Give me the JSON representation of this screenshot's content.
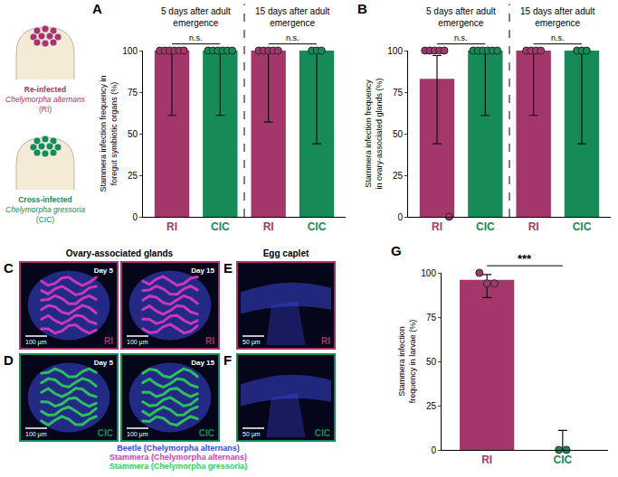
{
  "cartoon": [
    {
      "lines": [
        "Re-infected",
        "Chelymorpha alternans",
        "(RI)"
      ],
      "color": "#a3366b"
    },
    {
      "lines": [
        "Cross-infected",
        "Chelymorpha gressoria",
        "(CIC)"
      ],
      "color": "#168a57"
    }
  ],
  "chart_data": [
    {
      "letter": "A",
      "type": "bar",
      "y_title": "Stammera infection frequency in foregut symbiotic organs (%)",
      "categories": [
        "RI",
        "CIC",
        "RI",
        "CIC"
      ],
      "colors": [
        "#a3366b",
        "#168a57",
        "#a3366b",
        "#168a57"
      ],
      "values": [
        100,
        100,
        100,
        100
      ],
      "ci_lower": [
        61,
        61,
        57,
        44
      ],
      "ci_upper": [
        100,
        100,
        100,
        100
      ],
      "points": [
        [
          100,
          100,
          100,
          100,
          100,
          100
        ],
        [
          100,
          100,
          100,
          100,
          100,
          100
        ],
        [
          100,
          100,
          100,
          100,
          100
        ],
        [
          100,
          100,
          100
        ]
      ],
      "groups": [
        {
          "title": "5 days after adult emergence",
          "significance": "n.s."
        },
        {
          "title": "15 days after adult emergence",
          "significance": "n.s."
        }
      ],
      "ylim": [
        0,
        100
      ],
      "yticks": [
        0,
        25,
        50,
        75,
        100
      ],
      "grid": false
    },
    {
      "letter": "B",
      "type": "bar",
      "y_title": "Stammera infection frequency in ovary-associated glands (%)",
      "categories": [
        "RI",
        "CIC",
        "RI",
        "CIC"
      ],
      "colors": [
        "#a3366b",
        "#168a57",
        "#a3366b",
        "#168a57"
      ],
      "values": [
        83,
        100,
        100,
        100
      ],
      "ci_lower": [
        44,
        61,
        61,
        44
      ],
      "ci_upper": [
        97,
        100,
        100,
        100
      ],
      "points": [
        [
          100,
          100,
          100,
          100,
          100,
          0
        ],
        [
          100,
          100,
          100,
          100,
          100,
          100
        ],
        [
          100,
          100,
          100,
          100
        ],
        [
          100,
          100,
          100
        ]
      ],
      "groups": [
        {
          "title": "5 days after adult emergence",
          "significance": "n.s."
        },
        {
          "title": "15 days after adult emergence",
          "significance": "n.s."
        }
      ],
      "ylim": [
        0,
        100
      ],
      "yticks": [
        0,
        25,
        50,
        75,
        100
      ],
      "grid": false
    },
    {
      "letter": "G",
      "type": "bar",
      "y_title": "Stammera infection frequency in larvae (%)",
      "categories": [
        "RI",
        "CIC"
      ],
      "colors": [
        "#a3366b",
        "#168a57"
      ],
      "values": [
        96,
        0
      ],
      "ci_lower": [
        86,
        0
      ],
      "ci_upper": [
        99,
        11
      ],
      "points": [
        [
          100,
          94,
          94
        ],
        [
          0,
          0
        ]
      ],
      "significance": "***",
      "ylim": [
        0,
        100
      ],
      "yticks": [
        0,
        25,
        50,
        75,
        100
      ],
      "grid": false
    }
  ],
  "micrographs": {
    "ovary": {
      "title": "Ovary-associated glands",
      "scale": "100 µm",
      "rows": [
        {
          "letter": "C",
          "label": "RI",
          "color": "#a3366b",
          "stain": 1,
          "days": [
            "Day 5",
            "Day 15"
          ]
        },
        {
          "letter": "D",
          "label": "CIC",
          "color": "#168a57",
          "stain": 2,
          "days": [
            "Day 5",
            "Day 15"
          ]
        }
      ]
    },
    "caplet": {
      "title": "Egg caplet",
      "scale": "50 µm",
      "rows": [
        {
          "letter": "E",
          "label": "RI",
          "color": "#a3366b"
        },
        {
          "letter": "F",
          "label": "CIC",
          "color": "#168a57"
        }
      ]
    },
    "legend": [
      {
        "text": "Beetle (Chelymorpha alternans)",
        "color": "#3b48e0"
      },
      {
        "text": "Stammera (Chelymorpha alternans)",
        "color": "#d93bc0"
      },
      {
        "text": "Stammera (Chelymorpha gressoria)",
        "color": "#2fcf5a"
      }
    ]
  }
}
